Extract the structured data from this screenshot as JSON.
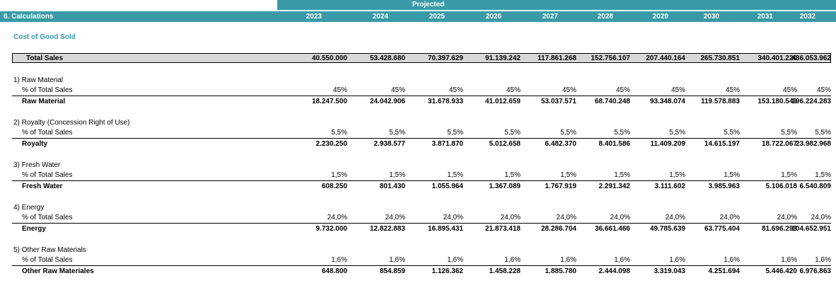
{
  "header": {
    "projected_label": "Projected",
    "section_label": "6. Calculations",
    "years": [
      "2023",
      "2024",
      "2025",
      "2026",
      "2027",
      "2028",
      "2029",
      "2030",
      "2031",
      "2032"
    ]
  },
  "cost_heading": "Cost of Good Sold",
  "total_sales": {
    "label": "Total Sales",
    "values": [
      "40.550.000",
      "53.428.680",
      "70.397.629",
      "91.139.242",
      "117.861.268",
      "152.756.107",
      "207.440.164",
      "265.730.851",
      "340.401.220",
      "436.053.962"
    ]
  },
  "sections": [
    {
      "title": "1) Raw Material",
      "pct_label": "% of Total Sales",
      "pct_values": [
        "45%",
        "45%",
        "45%",
        "45%",
        "45%",
        "45%",
        "45%",
        "45%",
        "45%",
        "45%"
      ],
      "total_label": "Raw Material",
      "total_values": [
        "18.247.500",
        "24.042.906",
        "31.678.933",
        "41.012.659",
        "53.037.571",
        "68.740.248",
        "93.348.074",
        "119.578.883",
        "153.180.549",
        "196.224.283"
      ]
    },
    {
      "title": "2) Royalty (Concession Right of Use)",
      "pct_label": "% of Total Sales",
      "pct_values": [
        "5,5%",
        "5,5%",
        "5,5%",
        "5,5%",
        "5,5%",
        "5,5%",
        "5,5%",
        "5,5%",
        "5,5%",
        "5,5%"
      ],
      "total_label": "Royalty",
      "total_values": [
        "2.230.250",
        "2.938.577",
        "3.871.870",
        "5.012.658",
        "6.482.370",
        "8.401.586",
        "11.409.209",
        "14.615.197",
        "18.722.067",
        "23.982.968"
      ]
    },
    {
      "title": "3) Fresh Water",
      "pct_label": "% of Total Sales",
      "pct_values": [
        "1,5%",
        "1,5%",
        "1,5%",
        "1,5%",
        "1,5%",
        "1,5%",
        "1,5%",
        "1,5%",
        "1,5%",
        "1,5%"
      ],
      "total_label": "Fresh Water",
      "total_values": [
        "608.250",
        "801.430",
        "1.055.964",
        "1.367.089",
        "1.767.919",
        "2.291.342",
        "3.111.602",
        "3.985.963",
        "5.106.018",
        "6.540.809"
      ]
    },
    {
      "title": "4) Energy",
      "pct_label": "% of Total Sales",
      "pct_values": [
        "24,0%",
        "24,0%",
        "24,0%",
        "24,0%",
        "24,0%",
        "24,0%",
        "24,0%",
        "24,0%",
        "24,0%",
        "24,0%"
      ],
      "total_label": "Energy",
      "total_values": [
        "9.732.000",
        "12.822.883",
        "16.895.431",
        "21.873.418",
        "28.286.704",
        "36.661.466",
        "49.785.639",
        "63.775.404",
        "81.696.293",
        "104.652.951"
      ]
    },
    {
      "title": "5) Other Raw Materials",
      "pct_label": "% of Total Sales",
      "pct_values": [
        "1,6%",
        "1,6%",
        "1,6%",
        "1,6%",
        "1,6%",
        "1,6%",
        "1,6%",
        "1,6%",
        "1,6%",
        "1,6%"
      ],
      "total_label": "Other Raw Materiales",
      "total_values": [
        "648.800",
        "854.859",
        "1.126.362",
        "1.458.228",
        "1.885.780",
        "2.444.098",
        "3.319.043",
        "4.251.694",
        "5.446.420",
        "6.976.863"
      ]
    }
  ]
}
